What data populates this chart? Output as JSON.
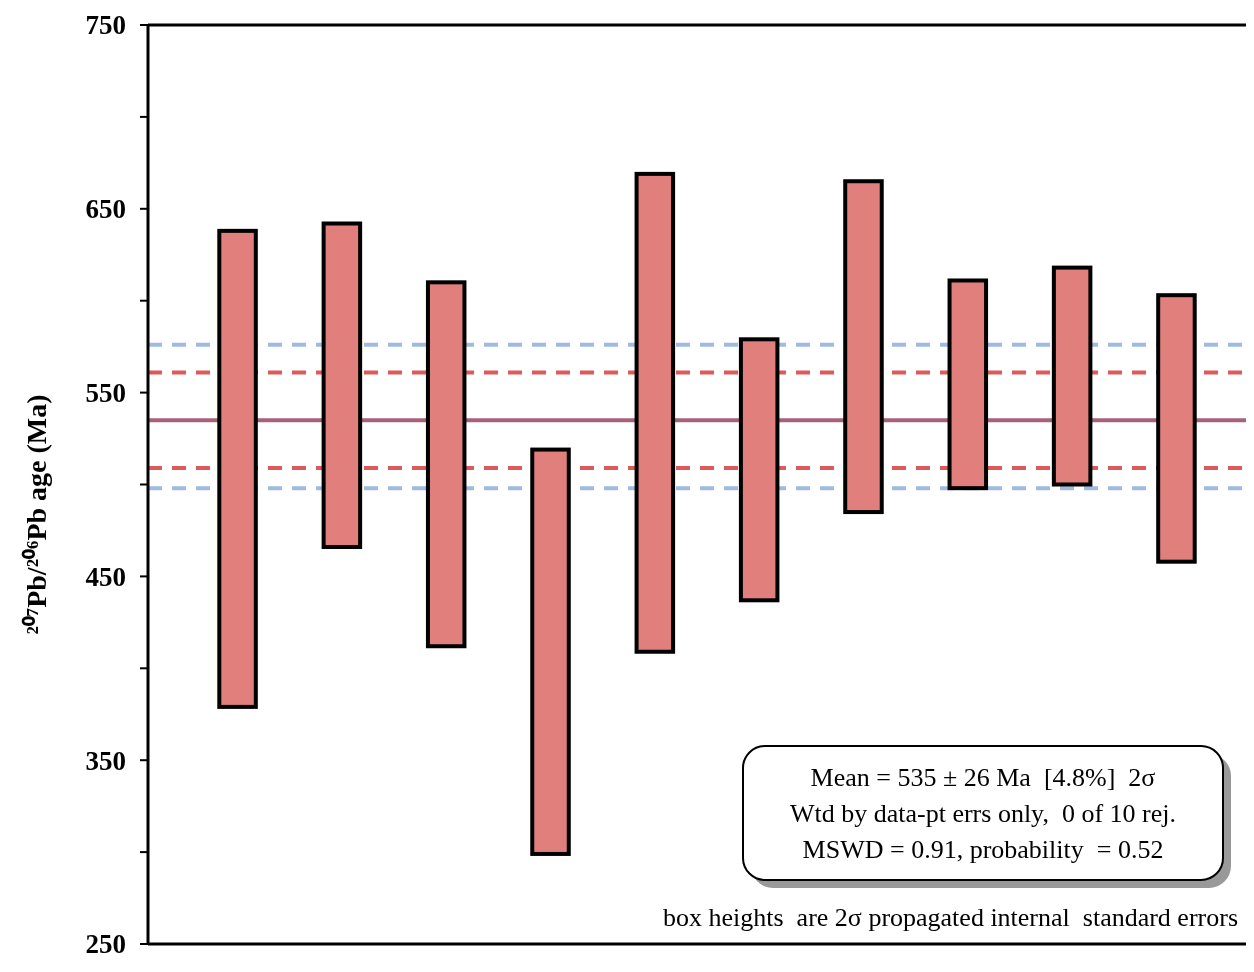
{
  "chart_data": {
    "type": "bar",
    "ylabel": "²⁰⁷Pb/²⁰⁶Pb age (Ma)",
    "categories": [
      null,
      null,
      null,
      null,
      null,
      null,
      null,
      null,
      null,
      null
    ],
    "base": [
      379,
      466,
      412,
      299,
      409,
      437,
      485,
      498,
      500,
      458
    ],
    "values": [
      259,
      176,
      198,
      220,
      260,
      142,
      180,
      113,
      118,
      145
    ],
    "color": "#e07f7c",
    "ylim": [
      250,
      750
    ],
    "yticks": [
      250,
      {
        "value": 300,
        "label": null
      },
      350,
      {
        "value": 400,
        "label": null
      },
      450,
      {
        "value": 500,
        "label": null
      },
      550,
      {
        "value": 600,
        "label": null
      },
      650,
      {
        "value": 700,
        "label": null
      },
      750
    ],
    "tick_labels": "y",
    "ref_lines": [
      {
        "axis": "y",
        "value": 535,
        "color": "#a8607c",
        "line_style": "solid"
      },
      {
        "axis": "y",
        "value": 561,
        "color": "#dc5a5a",
        "line_style": "dashed"
      },
      {
        "axis": "y",
        "value": 509,
        "color": "#dc5a5a",
        "line_style": "dashed"
      },
      {
        "axis": "y",
        "value": 576,
        "color": "#9fbbe0",
        "line_style": "dashed"
      },
      {
        "axis": "y",
        "value": 498,
        "color": "#9fbbe0",
        "line_style": "dashed"
      }
    ],
    "annotations": [
      "Mean = 535 ± 26 Ma  [4.8%]  2σ",
      "Wtd by data-pt errs only,  0 of 10 rej.",
      "MSWD = 0.91, probability  = 0.52",
      "box heights  are 2σ propagated internal  standard errors"
    ],
    "grid": false
  }
}
